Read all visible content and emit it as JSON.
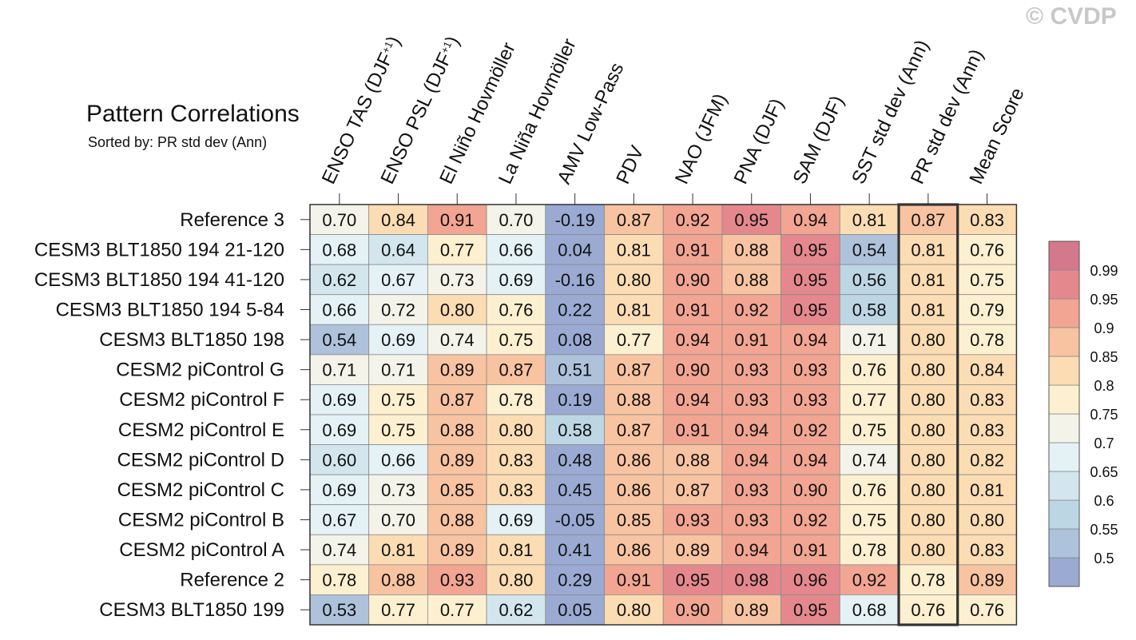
{
  "watermark": "© CVDP",
  "chart_data": {
    "type": "heatmap",
    "title": "Pattern Correlations",
    "subtitle": "Sorted by: PR std dev (Ann)",
    "columns": [
      {
        "main": "ENSO TAS (DJF",
        "sup": "+1",
        "tail": ")"
      },
      {
        "main": "ENSO PSL (DJF",
        "sup": "+1",
        "tail": ")"
      },
      {
        "main": "El Niño Hovmöller"
      },
      {
        "main": "La Niña Hovmöller"
      },
      {
        "main": "AMV Low-Pass"
      },
      {
        "main": "PDV"
      },
      {
        "main": "NAO (JFM)"
      },
      {
        "main": "PNA (DJF)"
      },
      {
        "main": "SAM (DJF)"
      },
      {
        "main": "SST std dev (Ann)"
      },
      {
        "main": "PR std dev (Ann)"
      },
      {
        "main": "Mean Score"
      }
    ],
    "rows": [
      {
        "name": "Reference 3",
        "values": [
          "0.70",
          "0.84",
          "0.91",
          "0.70",
          "-0.19",
          "0.87",
          "0.92",
          "0.95",
          "0.94",
          "0.81",
          "0.87",
          "0.83"
        ]
      },
      {
        "name": "CESM3 BLT1850 194 21-120",
        "values": [
          "0.68",
          "0.64",
          "0.77",
          "0.66",
          "0.04",
          "0.81",
          "0.91",
          "0.88",
          "0.95",
          "0.54",
          "0.81",
          "0.76"
        ]
      },
      {
        "name": "CESM3 BLT1850 194 41-120",
        "values": [
          "0.62",
          "0.67",
          "0.73",
          "0.69",
          "-0.16",
          "0.80",
          "0.90",
          "0.88",
          "0.95",
          "0.56",
          "0.81",
          "0.75"
        ]
      },
      {
        "name": "CESM3 BLT1850 194 5-84",
        "values": [
          "0.66",
          "0.72",
          "0.80",
          "0.76",
          "0.22",
          "0.81",
          "0.91",
          "0.92",
          "0.95",
          "0.58",
          "0.81",
          "0.79"
        ]
      },
      {
        "name": "CESM3 BLT1850 198",
        "values": [
          "0.54",
          "0.69",
          "0.74",
          "0.75",
          "0.08",
          "0.77",
          "0.94",
          "0.91",
          "0.94",
          "0.71",
          "0.80",
          "0.78"
        ]
      },
      {
        "name": "CESM2 piControl G",
        "values": [
          "0.71",
          "0.71",
          "0.89",
          "0.87",
          "0.51",
          "0.87",
          "0.90",
          "0.93",
          "0.93",
          "0.76",
          "0.80",
          "0.84"
        ]
      },
      {
        "name": "CESM2 piControl F",
        "values": [
          "0.69",
          "0.75",
          "0.87",
          "0.78",
          "0.19",
          "0.88",
          "0.94",
          "0.93",
          "0.93",
          "0.77",
          "0.80",
          "0.83"
        ]
      },
      {
        "name": "CESM2 piControl E",
        "values": [
          "0.69",
          "0.75",
          "0.88",
          "0.80",
          "0.58",
          "0.87",
          "0.91",
          "0.94",
          "0.92",
          "0.75",
          "0.80",
          "0.83"
        ]
      },
      {
        "name": "CESM2 piControl D",
        "values": [
          "0.60",
          "0.66",
          "0.89",
          "0.83",
          "0.48",
          "0.86",
          "0.88",
          "0.94",
          "0.94",
          "0.74",
          "0.80",
          "0.82"
        ]
      },
      {
        "name": "CESM2 piControl C",
        "values": [
          "0.69",
          "0.73",
          "0.85",
          "0.83",
          "0.45",
          "0.86",
          "0.87",
          "0.93",
          "0.90",
          "0.76",
          "0.80",
          "0.81"
        ]
      },
      {
        "name": "CESM2 piControl B",
        "values": [
          "0.67",
          "0.70",
          "0.88",
          "0.69",
          "-0.05",
          "0.85",
          "0.93",
          "0.93",
          "0.92",
          "0.75",
          "0.80",
          "0.80"
        ]
      },
      {
        "name": "CESM2 piControl A",
        "values": [
          "0.74",
          "0.81",
          "0.89",
          "0.81",
          "0.41",
          "0.86",
          "0.89",
          "0.94",
          "0.91",
          "0.78",
          "0.80",
          "0.83"
        ]
      },
      {
        "name": "Reference 2",
        "values": [
          "0.78",
          "0.88",
          "0.93",
          "0.80",
          "0.29",
          "0.91",
          "0.95",
          "0.98",
          "0.96",
          "0.92",
          "0.78",
          "0.89"
        ]
      },
      {
        "name": "CESM3 BLT1850 199",
        "values": [
          "0.53",
          "0.77",
          "0.77",
          "0.62",
          "0.05",
          "0.80",
          "0.90",
          "0.89",
          "0.95",
          "0.68",
          "0.76",
          "0.76"
        ]
      }
    ],
    "highlight_column": "PR std dev (Ann)",
    "colorbar": {
      "levels": [
        "0.5",
        "0.55",
        "0.6",
        "0.65",
        "0.7",
        "0.75",
        "0.8",
        "0.85",
        "0.9",
        "0.95",
        "0.99"
      ],
      "colors": [
        "#9aaad3",
        "#aec2dc",
        "#bcd6e4",
        "#d3e6ee",
        "#e4f1f5",
        "#f3f3e9",
        "#fdf0d0",
        "#fcdcb3",
        "#f8c3a1",
        "#f2a592",
        "#e5888d",
        "#d4788c"
      ]
    }
  }
}
